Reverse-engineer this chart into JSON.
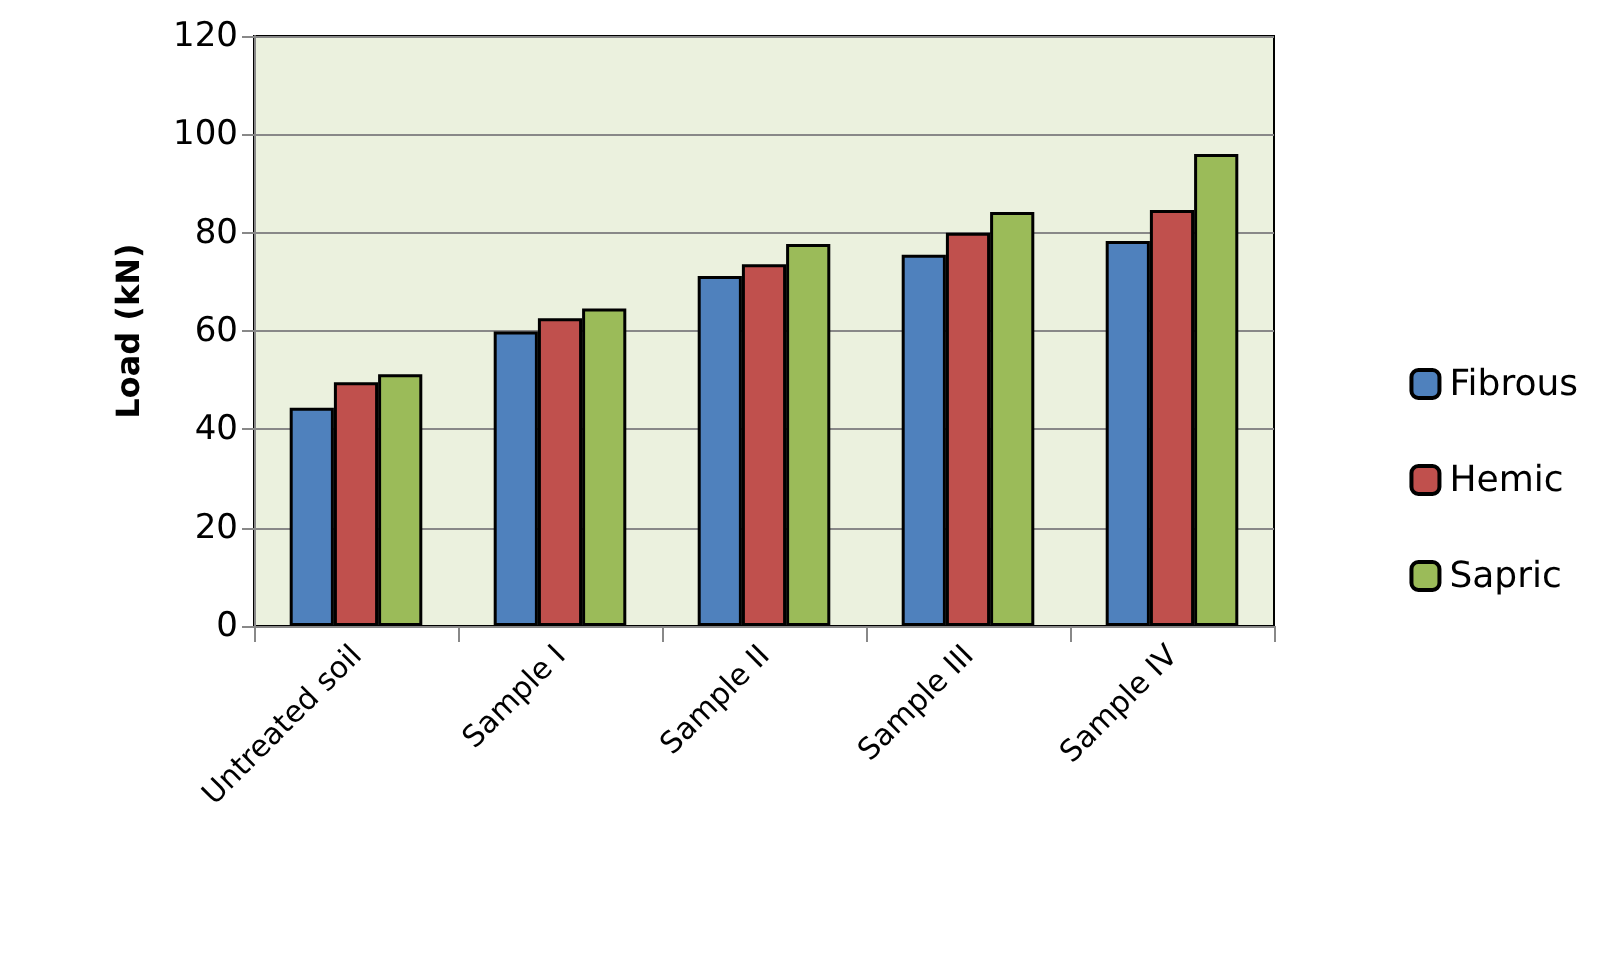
{
  "chart_data": {
    "type": "bar",
    "ylabel": "Load (kN)",
    "categories": [
      "Untreated soil",
      "Sample I",
      "Sample II",
      "Sample III",
      "Sample IV"
    ],
    "series": [
      {
        "name": "Fibrous",
        "color": "#4f81bd",
        "values": [
          44.4,
          59.9,
          71.2,
          75.5,
          78.3
        ]
      },
      {
        "name": "Hemic",
        "color": "#c0504d",
        "values": [
          49.6,
          62.6,
          73.6,
          80,
          84.6
        ]
      },
      {
        "name": "Sapric",
        "color": "#9bbb59",
        "values": [
          51.2,
          64.6,
          77.7,
          84.2,
          96
        ]
      }
    ],
    "ylim": [
      0,
      120
    ],
    "yticks": [
      0,
      20,
      40,
      60,
      80,
      100,
      120
    ],
    "grid": "y",
    "legend": "right"
  }
}
